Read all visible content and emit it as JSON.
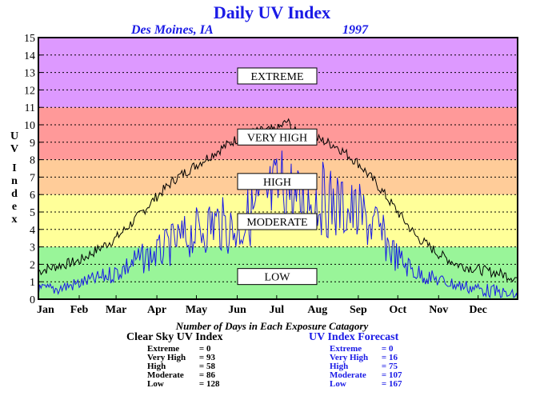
{
  "chart_data": {
    "type": "line",
    "title": "Daily UV Index",
    "location": "Des Moines, IA",
    "year": "1997",
    "ylabel": "UV Index",
    "ylim": [
      0,
      15
    ],
    "yticks": [
      0,
      1,
      2,
      3,
      4,
      5,
      6,
      7,
      8,
      9,
      10,
      11,
      12,
      13,
      14,
      15
    ],
    "xlim": [
      1,
      365
    ],
    "months": [
      "Jan",
      "Feb",
      "Mar",
      "Apr",
      "May",
      "Jun",
      "Jul",
      "Aug",
      "Sep",
      "Oct",
      "Nov",
      "Dec"
    ],
    "grid": true,
    "bands": [
      {
        "label": "LOW",
        "from": 0,
        "to": 3,
        "color": "#99f599"
      },
      {
        "label": "MODERATE",
        "from": 3,
        "to": 6,
        "color": "#ffff99"
      },
      {
        "label": "HIGH",
        "from": 6,
        "to": 8,
        "color": "#ffcc99"
      },
      {
        "label": "VERY HIGH",
        "from": 8,
        "to": 11,
        "color": "#ff9999"
      },
      {
        "label": "EXTREME",
        "from": 11,
        "to": 15,
        "color": "#dd99ff"
      }
    ],
    "series": [
      {
        "name": "Clear Sky UV Index",
        "color": "#000000",
        "x": [
          1,
          15,
          32,
          45,
          60,
          75,
          91,
          105,
          121,
          135,
          152,
          166,
          182,
          190,
          196,
          213,
          227,
          244,
          258,
          274,
          288,
          305,
          319,
          335,
          350,
          365
        ],
        "y": [
          1.6,
          1.9,
          2.2,
          2.8,
          3.5,
          4.6,
          5.9,
          6.9,
          7.7,
          8.4,
          9.2,
          9.6,
          9.7,
          10.2,
          9.6,
          9.2,
          8.8,
          7.8,
          6.6,
          5.0,
          3.6,
          2.6,
          2.0,
          1.7,
          1.5,
          1.2
        ]
      },
      {
        "name": "UV Index Forecast",
        "color": "#1a1ae6",
        "x": [
          1,
          15,
          32,
          45,
          60,
          75,
          91,
          105,
          121,
          135,
          152,
          166,
          182,
          190,
          196,
          213,
          227,
          244,
          258,
          274,
          288,
          305,
          319,
          335,
          350,
          365
        ],
        "y": [
          0.9,
          1.0,
          1.3,
          1.6,
          2.1,
          3.0,
          3.6,
          4.5,
          5.3,
          6.1,
          5.4,
          7.2,
          8.5,
          9.3,
          7.6,
          8.1,
          7.4,
          6.7,
          5.6,
          3.2,
          2.1,
          1.5,
          1.2,
          1.0,
          0.8,
          0.5
        ]
      }
    ]
  },
  "stats": {
    "heading": "Number of Days in Each Exposure Catagory",
    "clear_sky": {
      "title": "Clear Sky UV Index",
      "rows": [
        {
          "label": "Extreme",
          "value": "0"
        },
        {
          "label": "Very High",
          "value": "93"
        },
        {
          "label": "High",
          "value": "58"
        },
        {
          "label": "Moderate",
          "value": "86"
        },
        {
          "label": "Low",
          "value": "128"
        }
      ]
    },
    "forecast": {
      "title": "UV Index Forecast",
      "rows": [
        {
          "label": "Extreme",
          "value": "0"
        },
        {
          "label": "Very High",
          "value": "16"
        },
        {
          "label": "High",
          "value": "75"
        },
        {
          "label": "Moderate",
          "value": "107"
        },
        {
          "label": "Low",
          "value": "167"
        }
      ]
    }
  }
}
